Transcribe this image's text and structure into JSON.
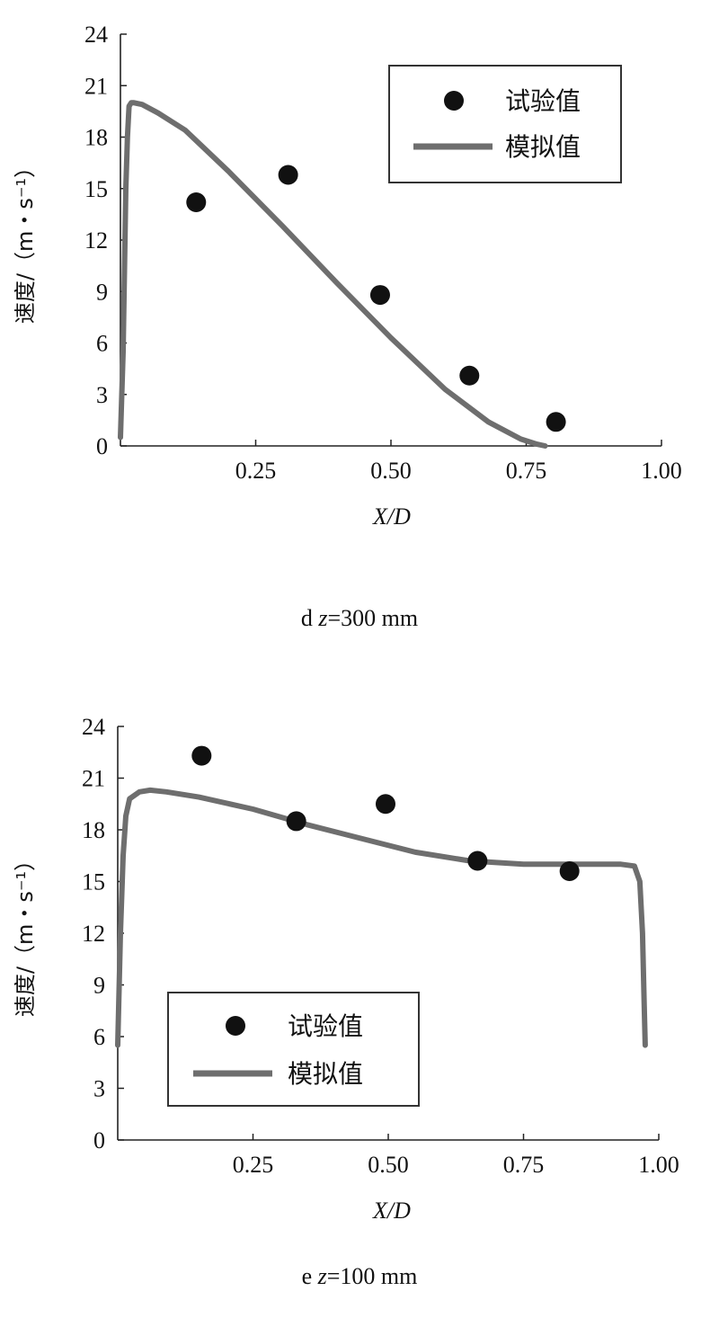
{
  "chart_data": [
    {
      "type": "line",
      "caption_prefix": "d ",
      "caption_var": "z",
      "caption_rest": "=300 mm",
      "xlabel": "X/D",
      "ylabel": "速度/（m・s⁻¹）",
      "xlim": [
        0,
        1.0
      ],
      "ylim": [
        0,
        24
      ],
      "xticks": [
        "0.25",
        "0.50",
        "0.75",
        "1.00"
      ],
      "xtick_values": [
        0.25,
        0.5,
        0.75,
        1.0
      ],
      "yticks": [
        "0",
        "3",
        "6",
        "9",
        "12",
        "15",
        "18",
        "21",
        "24"
      ],
      "ytick_values": [
        0,
        3,
        6,
        9,
        12,
        15,
        18,
        21,
        24
      ],
      "legend_position": "top-right",
      "series": [
        {
          "name": "试验值",
          "kind": "scatter",
          "color": "#111111",
          "x": [
            0.14,
            0.31,
            0.48,
            0.645,
            0.805
          ],
          "y": [
            14.2,
            15.8,
            8.8,
            4.1,
            1.4
          ]
        },
        {
          "name": "模拟值",
          "kind": "line",
          "color": "#6e6e6e",
          "x": [
            0.0,
            0.005,
            0.01,
            0.013,
            0.016,
            0.02,
            0.025,
            0.04,
            0.07,
            0.12,
            0.2,
            0.3,
            0.4,
            0.5,
            0.6,
            0.68,
            0.74,
            0.77,
            0.785
          ],
          "y": [
            0.5,
            5.5,
            15.0,
            18.0,
            19.8,
            20.0,
            20.0,
            19.9,
            19.4,
            18.4,
            16.0,
            12.8,
            9.5,
            6.3,
            3.3,
            1.4,
            0.4,
            0.1,
            0.0
          ]
        }
      ]
    },
    {
      "type": "line",
      "caption_prefix": "e ",
      "caption_var": "z",
      "caption_rest": "=100 mm",
      "xlabel": "X/D",
      "ylabel": "速度/（m・s⁻¹）",
      "xlim": [
        0,
        1.0
      ],
      "ylim": [
        0,
        24
      ],
      "xticks": [
        "0.25",
        "0.50",
        "0.75",
        "1.00"
      ],
      "xtick_values": [
        0.25,
        0.5,
        0.75,
        1.0
      ],
      "yticks": [
        "0",
        "3",
        "6",
        "9",
        "12",
        "15",
        "18",
        "21",
        "24"
      ],
      "ytick_values": [
        0,
        3,
        6,
        9,
        12,
        15,
        18,
        21,
        24
      ],
      "legend_position": "lower-left",
      "series": [
        {
          "name": "试验值",
          "kind": "scatter",
          "color": "#111111",
          "x": [
            0.155,
            0.33,
            0.495,
            0.665,
            0.835
          ],
          "y": [
            22.3,
            18.5,
            19.5,
            16.2,
            15.6
          ]
        },
        {
          "name": "模拟值",
          "kind": "line",
          "color": "#6e6e6e",
          "x": [
            0.0,
            0.005,
            0.01,
            0.015,
            0.022,
            0.04,
            0.06,
            0.09,
            0.15,
            0.25,
            0.35,
            0.45,
            0.55,
            0.65,
            0.75,
            0.85,
            0.93,
            0.955,
            0.965,
            0.97,
            0.973,
            0.975
          ],
          "y": [
            5.5,
            12.0,
            16.5,
            18.8,
            19.8,
            20.2,
            20.3,
            20.2,
            19.9,
            19.2,
            18.3,
            17.5,
            16.7,
            16.2,
            16.0,
            16.0,
            16.0,
            15.9,
            15.0,
            12.0,
            8.0,
            5.5
          ]
        }
      ]
    }
  ]
}
